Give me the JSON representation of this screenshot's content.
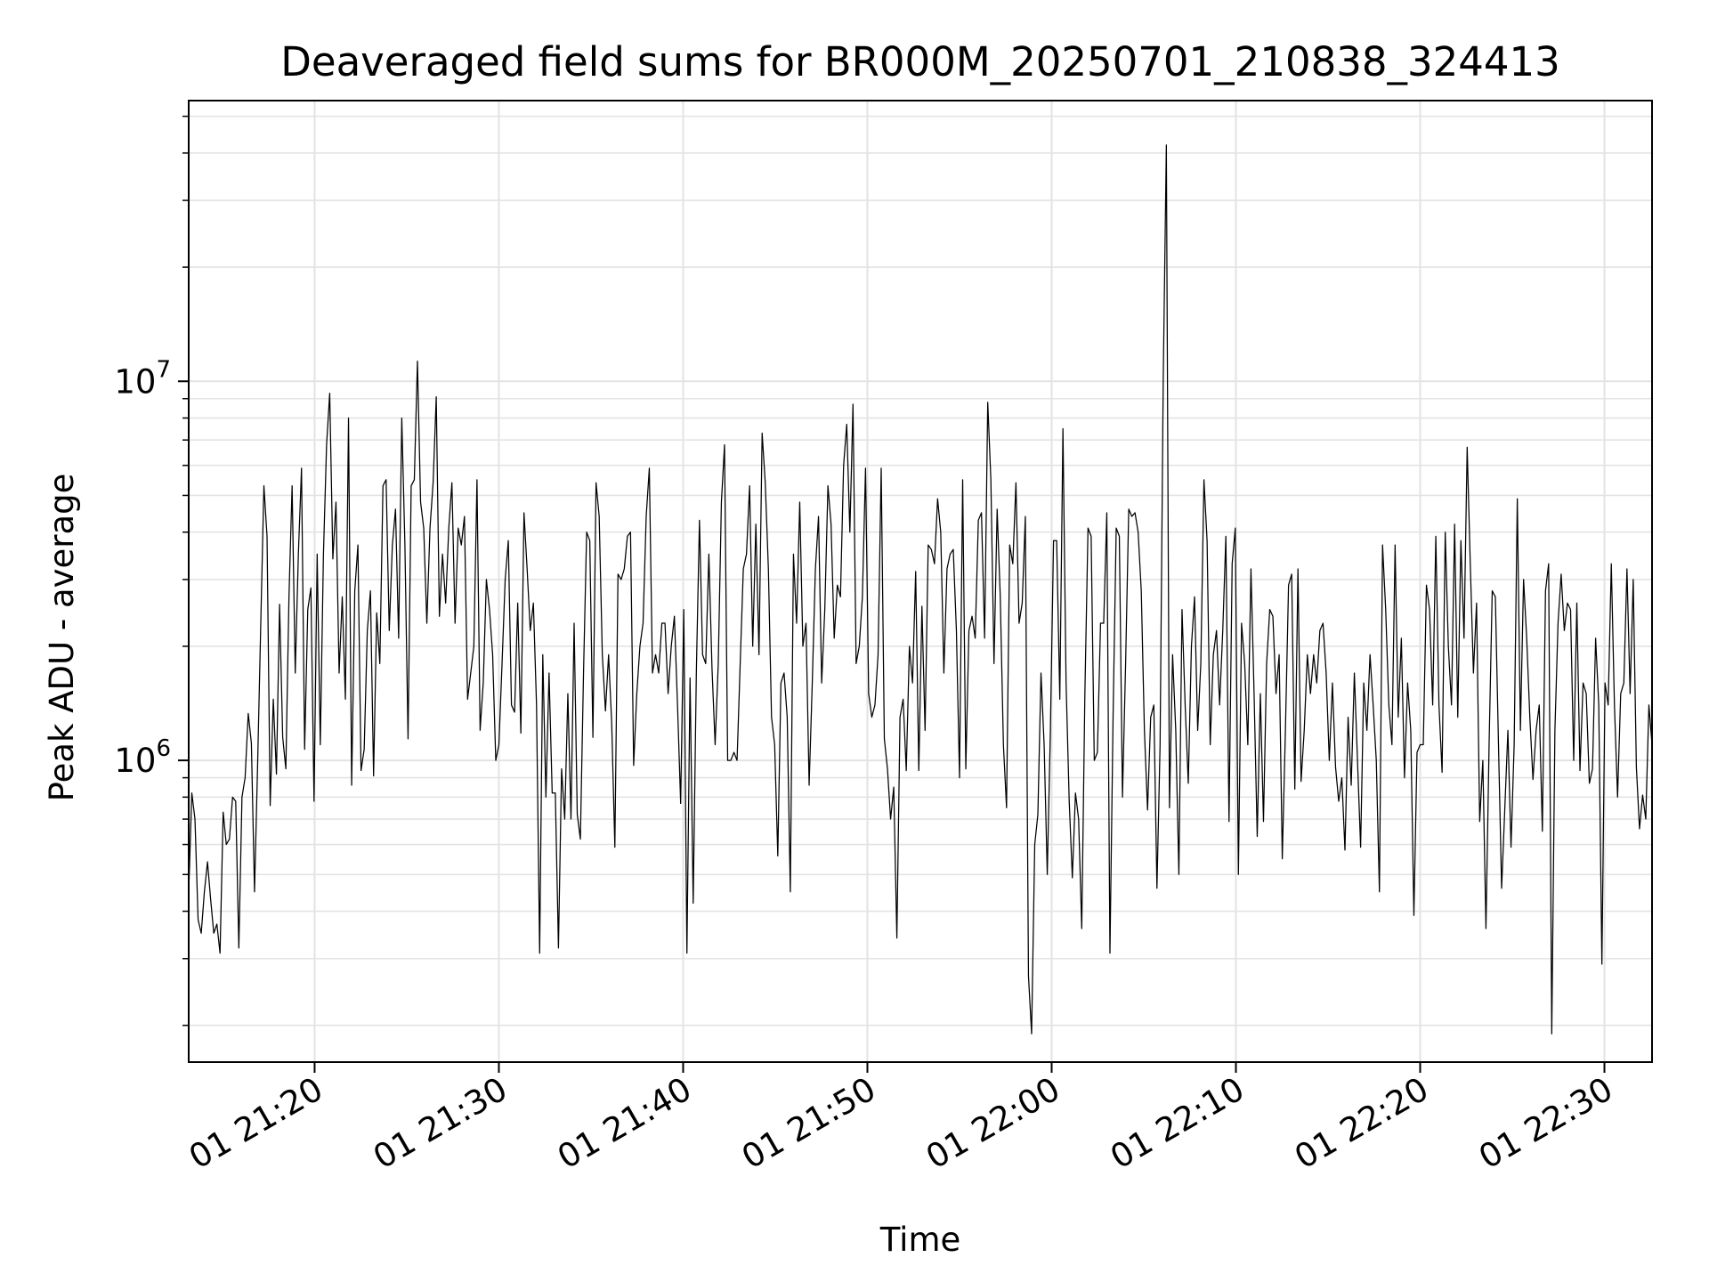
{
  "chart_data": {
    "type": "line",
    "title": "Deaveraged field sums for BR000M_20250701_210838_324413",
    "xlabel": "Time",
    "ylabel": "Peak ADU - average",
    "yscale": "log",
    "ylim": [
      160000,
      55000000
    ],
    "xlim": [
      "21:13:10",
      "22:32:35"
    ],
    "grid": true,
    "line_color": "#000000",
    "x_ticks": [
      "01 21:20",
      "01 21:30",
      "01 21:40",
      "01 21:50",
      "01 22:00",
      "01 22:10",
      "01 22:20",
      "01 22:30"
    ],
    "y_ticks": [
      {
        "base": "10",
        "exp": "6",
        "value": 1000000
      },
      {
        "base": "10",
        "exp": "7",
        "value": 10000000
      }
    ],
    "series": [
      {
        "time_start": "21:13:10",
        "time_end": "22:32:35",
        "values": [
          450000,
          820000,
          700000,
          380000,
          350000,
          450000,
          540000,
          430000,
          350000,
          370000,
          310000,
          730000,
          600000,
          620000,
          800000,
          780000,
          320000,
          800000,
          900000,
          1330000,
          1110000,
          450000,
          980000,
          2300000,
          5300000,
          3900000,
          760000,
          1450000,
          920000,
          2580000,
          1150000,
          950000,
          2700000,
          5300000,
          1700000,
          3500000,
          5900000,
          1070000,
          2500000,
          2850000,
          780000,
          3500000,
          1100000,
          3500000,
          6800000,
          9300000,
          3400000,
          4800000,
          1700000,
          2700000,
          1450000,
          8000000,
          860000,
          2800000,
          3700000,
          940000,
          1070000,
          2200000,
          2800000,
          910000,
          2450000,
          1800000,
          5300000,
          5500000,
          2200000,
          3700000,
          4600000,
          2100000,
          8000000,
          3700000,
          1140000,
          5300000,
          5500000,
          11300000,
          4800000,
          4100000,
          2300000,
          4100000,
          5400000,
          9100000,
          2400000,
          3500000,
          2600000,
          4100000,
          5400000,
          2300000,
          4100000,
          3700000,
          4400000,
          1450000,
          1700000,
          2000000,
          5500000,
          1200000,
          1600000,
          3000000,
          2500000,
          1900000,
          1000000,
          1100000,
          1800000,
          3000000,
          3800000,
          1400000,
          1340000,
          2600000,
          1180000,
          4500000,
          3200000,
          2200000,
          2600000,
          1400000,
          310000,
          1900000,
          800000,
          1700000,
          820000,
          820000,
          320000,
          950000,
          700000,
          1500000,
          700000,
          2300000,
          720000,
          620000,
          1700000,
          4000000,
          3800000,
          1150000,
          5400000,
          4400000,
          1900000,
          1350000,
          1900000,
          1250000,
          590000,
          3100000,
          3000000,
          3200000,
          3900000,
          4000000,
          970000,
          1500000,
          2000000,
          2300000,
          4400000,
          5900000,
          1700000,
          1900000,
          1700000,
          2300000,
          2300000,
          1500000,
          2000000,
          2400000,
          1400000,
          770000,
          2500000,
          310000,
          1650000,
          420000,
          1700000,
          4300000,
          1900000,
          1800000,
          3500000,
          1750000,
          1100000,
          1800000,
          4800000,
          6800000,
          1000000,
          1000000,
          1050000,
          1000000,
          1800000,
          3200000,
          3500000,
          5300000,
          2000000,
          4200000,
          1900000,
          7300000,
          5400000,
          3200000,
          1300000,
          1100000,
          560000,
          1600000,
          1700000,
          1300000,
          450000,
          3500000,
          2300000,
          4800000,
          2000000,
          2300000,
          860000,
          1600000,
          3200000,
          4400000,
          1600000,
          2500000,
          5300000,
          4200000,
          2100000,
          2900000,
          2700000,
          6000000,
          7700000,
          4000000,
          8700000,
          1800000,
          2000000,
          2700000,
          5900000,
          1500000,
          1300000,
          1400000,
          1900000,
          5900000,
          1140000,
          950000,
          700000,
          850000,
          340000,
          1300000,
          1450000,
          940000,
          2000000,
          1600000,
          3150000,
          940000,
          2550000,
          1200000,
          3700000,
          3600000,
          3300000,
          4900000,
          4000000,
          1700000,
          3200000,
          3500000,
          3600000,
          2200000,
          900000,
          5500000,
          950000,
          2200000,
          2400000,
          2100000,
          4300000,
          4500000,
          2100000,
          8800000,
          5500000,
          1800000,
          4600000,
          2700000,
          1100000,
          750000,
          3700000,
          3300000,
          5400000,
          2300000,
          2600000,
          4400000,
          270000,
          190000,
          600000,
          720000,
          1700000,
          1100000,
          500000,
          1200000,
          3800000,
          3800000,
          1450000,
          7500000,
          1600000,
          780000,
          490000,
          820000,
          700000,
          360000,
          1500000,
          4100000,
          3900000,
          1000000,
          1050000,
          2300000,
          2300000,
          4500000,
          310000,
          1300000,
          4100000,
          3900000,
          800000,
          1800000,
          4600000,
          4400000,
          4500000,
          4000000,
          2800000,
          1200000,
          740000,
          1300000,
          1400000,
          460000,
          1100000,
          10000000,
          42000000,
          750000,
          1900000,
          1200000,
          500000,
          2500000,
          1400000,
          870000,
          2000000,
          2700000,
          1200000,
          1800000,
          5500000,
          3800000,
          1100000,
          1900000,
          2200000,
          1400000,
          2200000,
          3900000,
          690000,
          3300000,
          4100000,
          500000,
          2300000,
          1800000,
          1100000,
          3200000,
          1500000,
          630000,
          1500000,
          690000,
          1800000,
          2500000,
          2400000,
          1500000,
          1900000,
          550000,
          1200000,
          2900000,
          3100000,
          840000,
          3200000,
          880000,
          1200000,
          1900000,
          1500000,
          1900000,
          1600000,
          2200000,
          2300000,
          1700000,
          1000000,
          1600000,
          960000,
          780000,
          900000,
          580000,
          1300000,
          860000,
          1700000,
          1000000,
          590000,
          1600000,
          1200000,
          1900000,
          1400000,
          1000000,
          450000,
          3700000,
          2500000,
          1400000,
          1100000,
          3700000,
          1300000,
          2100000,
          900000,
          1600000,
          1200000,
          390000,
          1050000,
          1100000,
          1100000,
          2900000,
          2500000,
          1400000,
          3900000,
          1400000,
          930000,
          4000000,
          2000000,
          1400000,
          4200000,
          1300000,
          3800000,
          2100000,
          6700000,
          3300000,
          1700000,
          2600000,
          690000,
          1000000,
          360000,
          1100000,
          2800000,
          2700000,
          1100000,
          460000,
          740000,
          1200000,
          590000,
          1100000,
          4900000,
          1200000,
          3000000,
          2100000,
          1300000,
          890000,
          1200000,
          1400000,
          650000,
          2800000,
          3300000,
          190000,
          1200000,
          2300000,
          3100000,
          2200000,
          2600000,
          2500000,
          1000000,
          2600000,
          940000,
          1600000,
          1500000,
          870000,
          950000,
          2100000,
          1400000,
          290000,
          1600000,
          1400000,
          3300000,
          1400000,
          800000,
          1500000,
          1600000,
          3200000,
          1500000,
          3000000,
          960000,
          660000,
          810000,
          700000,
          1400000,
          1100000
        ]
      }
    ]
  }
}
